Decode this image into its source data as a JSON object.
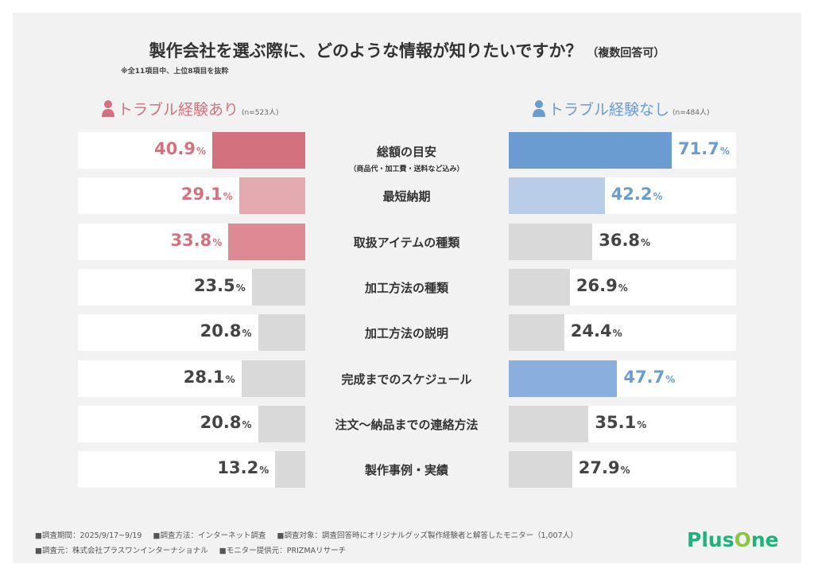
{
  "title": "製作会社を選ぶ際に、どのような情報が知りたいですか？",
  "title_suffix": "（複数回答可）",
  "note": "※全11項目中、上位8項目を抜粋",
  "footer": {
    "line1": [
      "■調査期間：2025/9/17~9/19",
      "■調査方法：インターネット調査",
      "■調査対象：調査回答時にオリジナルグッズ製作経験者と解答したモニター（1,007人）"
    ],
    "line2": [
      "■調査元：株式会社プラスワンインターナショナル",
      "■モニター提供元：PRIZMAリサーチ"
    ]
  },
  "logo": "PlusOne",
  "chart_data": {
    "type": "bar",
    "orientation": "horizontal-butterfly",
    "xlim": [
      0,
      100
    ],
    "unit": "%",
    "categories": [
      "総額の目安",
      "最短納期",
      "取扱アイテムの種類",
      "加工方法の種類",
      "加工方法の説明",
      "完成までのスケジュール",
      "注文〜納品までの連絡方法",
      "製作事例・実績"
    ],
    "category_subtitles": [
      "（商品代・加工費・送料など込み）",
      "",
      "",
      "",
      "",
      "",
      "",
      ""
    ],
    "series": [
      {
        "name": "トラブル経験あり",
        "n": "(n=523人)",
        "color": "#d4717e",
        "values": [
          40.9,
          29.1,
          33.8,
          23.5,
          20.8,
          28.1,
          20.8,
          13.2
        ],
        "bar_colors": [
          "#d4717e",
          "#e5aab0",
          "#dd8a95",
          "#d9d9d9",
          "#d9d9d9",
          "#d9d9d9",
          "#d9d9d9",
          "#d9d9d9"
        ],
        "label_colors": [
          "#d4717e",
          "#d4717e",
          "#d4717e",
          "#444444",
          "#444444",
          "#444444",
          "#444444",
          "#444444"
        ]
      },
      {
        "name": "トラブル経験なし",
        "n": "(n=484人)",
        "color": "#6a9bd1",
        "values": [
          71.7,
          42.2,
          36.8,
          26.9,
          24.4,
          47.7,
          35.1,
          27.9
        ],
        "bar_colors": [
          "#6a9bd1",
          "#b9cde8",
          "#d9d9d9",
          "#d9d9d9",
          "#d9d9d9",
          "#8aaede",
          "#d9d9d9",
          "#d9d9d9"
        ],
        "label_colors": [
          "#6a9bd1",
          "#6a9bd1",
          "#444444",
          "#444444",
          "#444444",
          "#6a9bd1",
          "#444444",
          "#444444"
        ]
      }
    ]
  }
}
